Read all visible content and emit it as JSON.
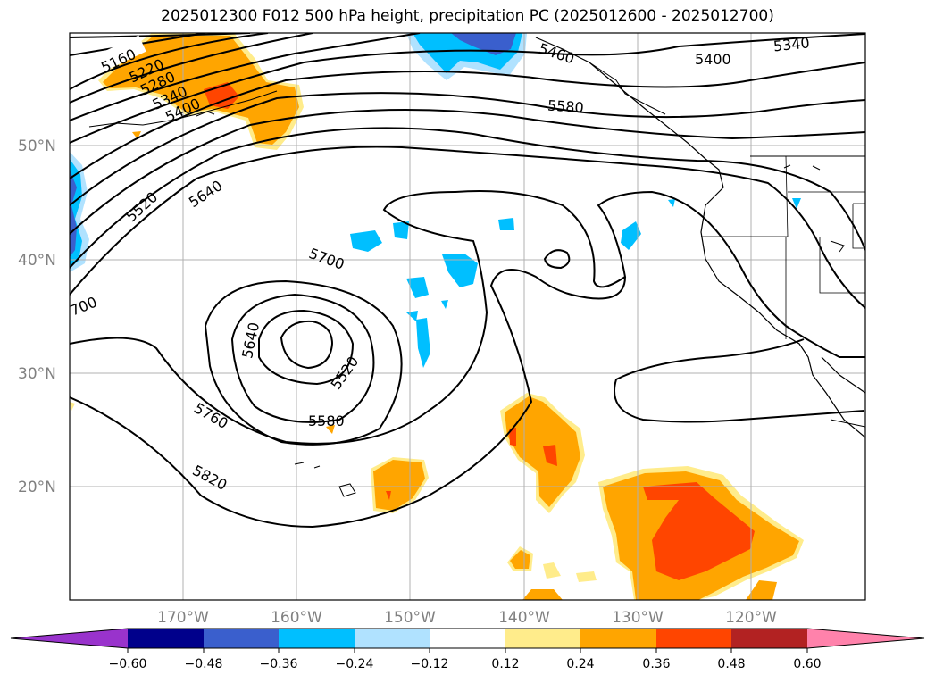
{
  "title": "2025012300 F012 500 hPa height, precipitation PC (2025012600 - 2025012700)",
  "lat_labels": [
    "50°N",
    "40°N",
    "30°N",
    "20°N"
  ],
  "lon_labels": [
    "170°W",
    "160°W",
    "150°W",
    "140°W",
    "130°W",
    "120°W"
  ],
  "colorbar": {
    "colors": [
      "#9933cc",
      "#00008b",
      "#3a5fcd",
      "#00bfff",
      "#b0e2ff",
      "#ffffff",
      "#ffec8b",
      "#ffa500",
      "#ff4500",
      "#b22222",
      "#ff82ab"
    ],
    "tick_labels": [
      "−0.60",
      "−0.48",
      "−0.36",
      "−0.24",
      "−0.12",
      "0.12",
      "0.24",
      "0.36",
      "0.48",
      "0.60"
    ]
  },
  "contour_labels": {
    "c5160": "5160",
    "c5220": "5220",
    "c5280": "5280",
    "c5340a": "5340",
    "c5400a": "5400",
    "c5520a": "5520",
    "c5640a": "5640",
    "c700": "700",
    "c5700": "5700",
    "c5640b": "5640",
    "c5520b": "5520",
    "c5580a": "5580",
    "c5760": "5760",
    "c5820": "5820",
    "c5460": "5460",
    "c5400b": "5400",
    "c5340b": "5340",
    "c5580b": "5580"
  }
}
